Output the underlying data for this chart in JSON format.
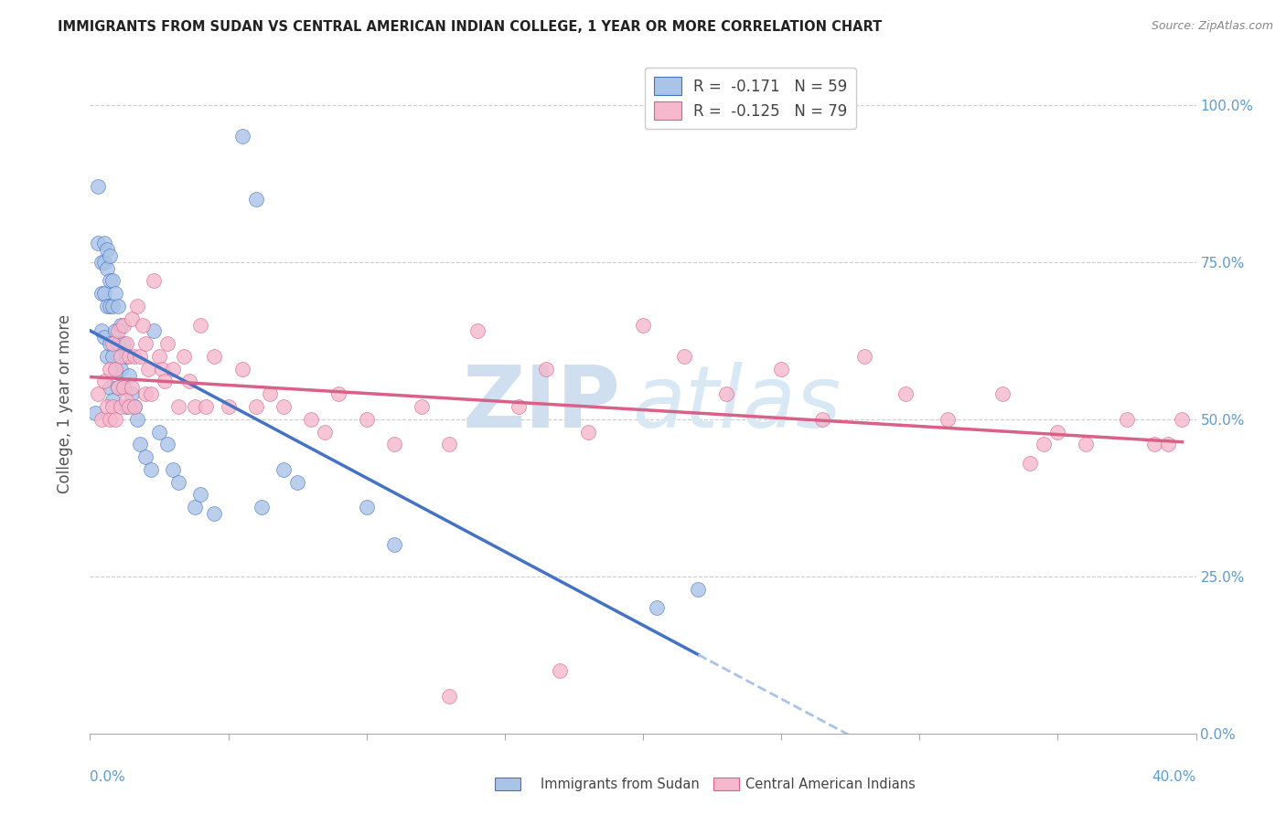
{
  "title": "IMMIGRANTS FROM SUDAN VS CENTRAL AMERICAN INDIAN COLLEGE, 1 YEAR OR MORE CORRELATION CHART",
  "source": "Source: ZipAtlas.com",
  "ylabel": "College, 1 year or more",
  "legend_blue_R": "-0.171",
  "legend_blue_N": "59",
  "legend_pink_R": "-0.125",
  "legend_pink_N": "79",
  "legend_blue_label": "Immigrants from Sudan",
  "legend_pink_label": "Central American Indians",
  "blue_color": "#aac4e8",
  "pink_color": "#f5b8cc",
  "blue_line_color": "#4472c4",
  "pink_line_color": "#d96087",
  "blue_dashed_color": "#aac4e8",
  "watermark_zip_color": "#d0dff0",
  "watermark_atlas_color": "#d8e8f5",
  "background_color": "#ffffff",
  "grid_color": "#cccccc",
  "right_axis_color": "#5b9bd5",
  "title_color": "#222222",
  "source_color": "#888888",
  "ylabel_color": "#555555",
  "xlim": [
    0.0,
    0.4
  ],
  "ylim": [
    0.0,
    1.05
  ],
  "xtick_count": 9,
  "ytick_positions": [
    0.0,
    0.25,
    0.5,
    0.75,
    1.0
  ],
  "right_ytick_labels": [
    "0.0%",
    "25.0%",
    "50.0%",
    "75.0%",
    "100.0%"
  ],
  "blue_x": [
    0.002,
    0.003,
    0.003,
    0.004,
    0.004,
    0.004,
    0.005,
    0.005,
    0.005,
    0.005,
    0.006,
    0.006,
    0.006,
    0.006,
    0.007,
    0.007,
    0.007,
    0.007,
    0.007,
    0.008,
    0.008,
    0.008,
    0.008,
    0.009,
    0.009,
    0.009,
    0.01,
    0.01,
    0.01,
    0.011,
    0.011,
    0.012,
    0.012,
    0.013,
    0.013,
    0.014,
    0.015,
    0.016,
    0.017,
    0.018,
    0.02,
    0.022,
    0.023,
    0.025,
    0.028,
    0.03,
    0.032,
    0.038,
    0.04,
    0.045,
    0.055,
    0.06,
    0.062,
    0.07,
    0.075,
    0.1,
    0.11,
    0.205,
    0.22
  ],
  "blue_y": [
    0.51,
    0.87,
    0.78,
    0.75,
    0.7,
    0.64,
    0.78,
    0.75,
    0.7,
    0.63,
    0.77,
    0.74,
    0.68,
    0.6,
    0.76,
    0.72,
    0.68,
    0.62,
    0.55,
    0.72,
    0.68,
    0.6,
    0.53,
    0.7,
    0.64,
    0.58,
    0.68,
    0.62,
    0.55,
    0.65,
    0.58,
    0.62,
    0.55,
    0.6,
    0.52,
    0.57,
    0.54,
    0.52,
    0.5,
    0.46,
    0.44,
    0.42,
    0.64,
    0.48,
    0.46,
    0.42,
    0.4,
    0.36,
    0.38,
    0.35,
    0.95,
    0.85,
    0.36,
    0.42,
    0.4,
    0.36,
    0.3,
    0.2,
    0.23
  ],
  "pink_x": [
    0.003,
    0.004,
    0.005,
    0.006,
    0.007,
    0.007,
    0.008,
    0.008,
    0.009,
    0.009,
    0.01,
    0.01,
    0.011,
    0.011,
    0.012,
    0.012,
    0.013,
    0.013,
    0.014,
    0.014,
    0.015,
    0.015,
    0.016,
    0.016,
    0.017,
    0.018,
    0.019,
    0.02,
    0.02,
    0.021,
    0.022,
    0.023,
    0.025,
    0.026,
    0.027,
    0.028,
    0.03,
    0.032,
    0.034,
    0.036,
    0.038,
    0.04,
    0.042,
    0.045,
    0.05,
    0.055,
    0.06,
    0.065,
    0.07,
    0.08,
    0.085,
    0.09,
    0.1,
    0.11,
    0.12,
    0.13,
    0.14,
    0.155,
    0.165,
    0.18,
    0.2,
    0.215,
    0.23,
    0.25,
    0.265,
    0.28,
    0.295,
    0.31,
    0.33,
    0.35,
    0.36,
    0.375,
    0.385,
    0.39,
    0.395,
    0.34,
    0.345,
    0.17,
    0.13
  ],
  "pink_y": [
    0.54,
    0.5,
    0.56,
    0.52,
    0.58,
    0.5,
    0.62,
    0.52,
    0.58,
    0.5,
    0.64,
    0.55,
    0.6,
    0.52,
    0.65,
    0.55,
    0.62,
    0.53,
    0.6,
    0.52,
    0.66,
    0.55,
    0.6,
    0.52,
    0.68,
    0.6,
    0.65,
    0.62,
    0.54,
    0.58,
    0.54,
    0.72,
    0.6,
    0.58,
    0.56,
    0.62,
    0.58,
    0.52,
    0.6,
    0.56,
    0.52,
    0.65,
    0.52,
    0.6,
    0.52,
    0.58,
    0.52,
    0.54,
    0.52,
    0.5,
    0.48,
    0.54,
    0.5,
    0.46,
    0.52,
    0.46,
    0.64,
    0.52,
    0.58,
    0.48,
    0.65,
    0.6,
    0.54,
    0.58,
    0.5,
    0.6,
    0.54,
    0.5,
    0.54,
    0.48,
    0.46,
    0.5,
    0.46,
    0.46,
    0.5,
    0.43,
    0.46,
    0.1,
    0.06
  ]
}
